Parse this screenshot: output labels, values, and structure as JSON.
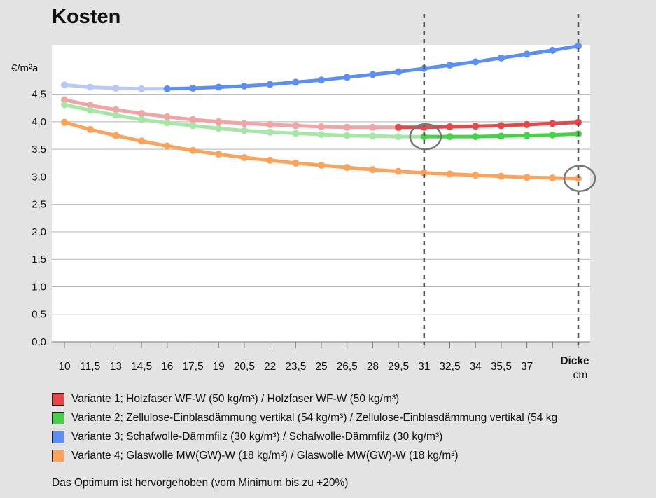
{
  "title": "Kosten",
  "chart_data": {
    "type": "line",
    "ylabel": "€/m²a",
    "xlabel_line1": "Dicke",
    "xlabel_line2": "cm",
    "x": [
      10,
      11.5,
      13,
      14.5,
      16,
      17.5,
      19,
      20.5,
      22,
      23.5,
      25,
      26.5,
      28,
      29.5,
      31,
      32.5,
      34,
      35.5,
      37,
      38.5,
      40
    ],
    "x_tick_labels": [
      "10",
      "11,5",
      "13",
      "14,5",
      "16",
      "17,5",
      "19",
      "20,5",
      "22",
      "23,5",
      "25",
      "26,5",
      "28",
      "29,5",
      "31",
      "32,5",
      "34",
      "35,5",
      "37",
      "",
      ""
    ],
    "y_ticks": [
      "0,0",
      "0,5",
      "1,0",
      "1,5",
      "2,0",
      "2,5",
      "3,0",
      "3,5",
      "4,0",
      "4,5"
    ],
    "ylim": [
      0,
      5.4
    ],
    "grid": "horizontal",
    "highlight_lines_x": [
      31,
      40
    ],
    "circle_markers": [
      {
        "x": 31,
        "y": 3.73
      },
      {
        "x": 40,
        "y": 2.97
      }
    ],
    "series": [
      {
        "name": "Variante 1; Holzfaser WF-W (50 kg/m³) / Holzfaser WF-W (50 kg/m³)",
        "color": "#e8474a",
        "light_color": "#f2a3a3",
        "optimum_from_x": 29.5,
        "values": [
          4.4,
          4.3,
          4.22,
          4.15,
          4.09,
          4.04,
          4.0,
          3.97,
          3.95,
          3.93,
          3.91,
          3.9,
          3.9,
          3.9,
          3.9,
          3.91,
          3.92,
          3.93,
          3.95,
          3.97,
          3.99
        ]
      },
      {
        "name": "Variante 2; Zellulose-Einblasdämmung vertikal (54 kg/m³) / Zellulose-Einblasdämmung vertikal (54 kg",
        "color": "#46d246",
        "light_color": "#a6e6a6",
        "optimum_from_x": 31,
        "values": [
          4.31,
          4.21,
          4.12,
          4.04,
          3.98,
          3.93,
          3.88,
          3.84,
          3.81,
          3.79,
          3.77,
          3.75,
          3.74,
          3.73,
          3.73,
          3.73,
          3.73,
          3.74,
          3.75,
          3.76,
          3.78
        ]
      },
      {
        "name": "Variante 3; Schafwolle-Dämmfilz (30 kg/m³) / Schafwolle-Dämmfilz (30 kg/m³)",
        "color": "#5b8ff5",
        "light_color": "#b7c9f7",
        "optimum_from_x": 16,
        "values": [
          4.67,
          4.63,
          4.61,
          4.6,
          4.6,
          4.61,
          4.63,
          4.65,
          4.68,
          4.72,
          4.76,
          4.81,
          4.86,
          4.91,
          4.97,
          5.03,
          5.09,
          5.16,
          5.23,
          5.3,
          5.38
        ]
      },
      {
        "name": "Variante 4; Glaswolle MW(GW)-W (18 kg/m³) / Glaswolle MW(GW)-W (18 kg/m³)",
        "color": "#fba35a",
        "light_color": "#fba35a",
        "optimum_from_x": 10,
        "values": [
          3.99,
          3.86,
          3.75,
          3.65,
          3.56,
          3.48,
          3.41,
          3.35,
          3.3,
          3.25,
          3.21,
          3.17,
          3.13,
          3.1,
          3.07,
          3.05,
          3.03,
          3.01,
          2.99,
          2.98,
          2.97
        ]
      }
    ]
  },
  "note": "Das Optimum ist hervorgehoben (vom Minimum bis zu +20%)"
}
